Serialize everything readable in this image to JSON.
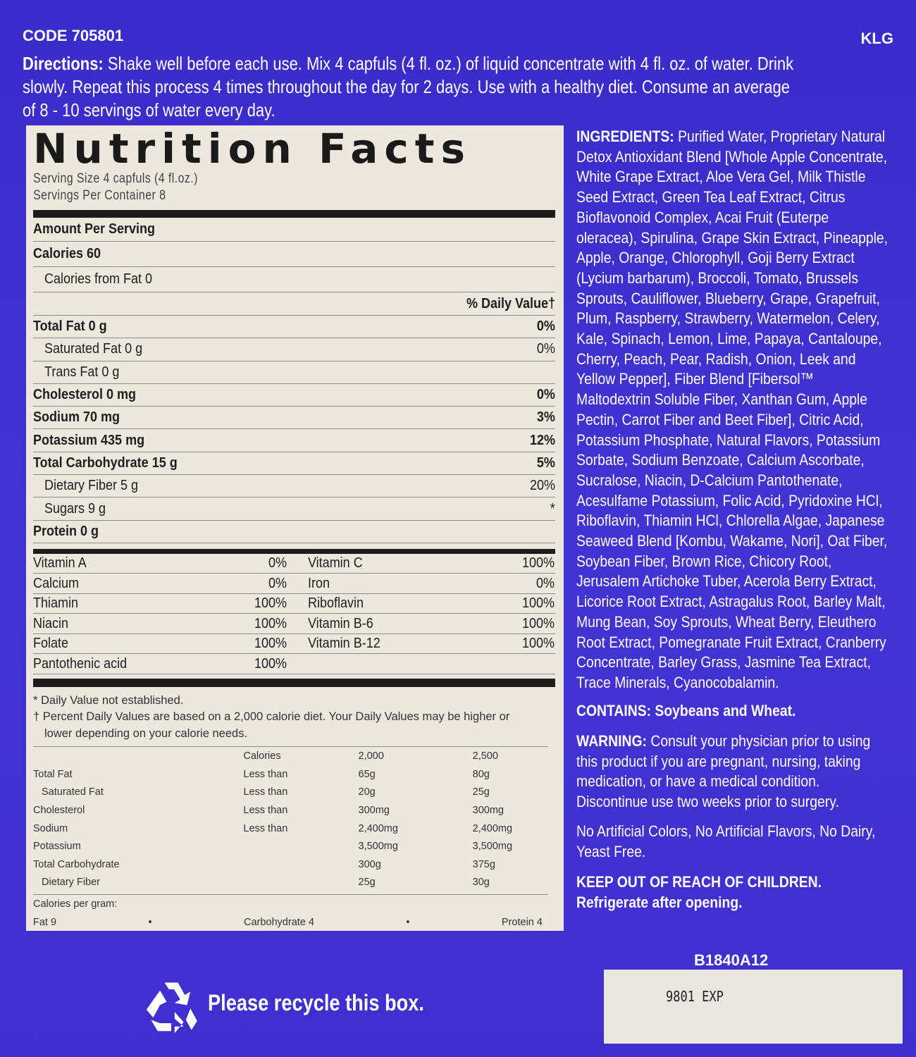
{
  "header": {
    "code": "CODE 705801",
    "klg": "KLG"
  },
  "directions": {
    "label": "Directions:",
    "lines": [
      "Shake well before each use. Mix 4 capfuls (4 fl. oz.) of liquid concentrate with 4 fl. oz. of water. Drink",
      "slowly. Repeat this process 4 times throughout the day for 2 days. Use with a healthy diet. Consume an average",
      "of 8 - 10 servings of water every day."
    ]
  },
  "nutrition": {
    "title": "Nutrition Facts",
    "serving_size": "Serving Size  4 capfuls (4 fl.oz.)",
    "servings_per_container": "Servings Per Container  8",
    "amount_per_serving": "Amount Per Serving",
    "calories": "Calories  60",
    "calories_from_fat": "Calories from Fat  0",
    "daily_value_header": "% Daily Value†",
    "nutrients": [
      {
        "label": "Total Fat  0 g",
        "dv": "0%",
        "bold": true,
        "indent": false
      },
      {
        "label": "Saturated Fat  0 g",
        "dv": "0%",
        "bold": false,
        "indent": true
      },
      {
        "label": "Trans Fat  0 g",
        "dv": "",
        "bold": false,
        "indent": true
      },
      {
        "label": "Cholesterol  0 mg",
        "dv": "0%",
        "bold": true,
        "indent": false
      },
      {
        "label": "Sodium  70 mg",
        "dv": "3%",
        "bold": true,
        "indent": false
      },
      {
        "label": "Potassium  435 mg",
        "dv": "12%",
        "bold": true,
        "indent": false
      },
      {
        "label": "Total Carbohydrate  15 g",
        "dv": "5%",
        "bold": true,
        "indent": false
      },
      {
        "label": "Dietary Fiber  5 g",
        "dv": "20%",
        "bold": false,
        "indent": true
      },
      {
        "label": "Sugars  9 g",
        "dv": "*",
        "bold": false,
        "indent": true
      },
      {
        "label": "Protein  0 g",
        "dv": "",
        "bold": true,
        "indent": false
      }
    ],
    "vitamins": [
      [
        "Vitamin A",
        "0%",
        "Vitamin C",
        "100%"
      ],
      [
        "Calcium",
        "0%",
        "Iron",
        "0%"
      ],
      [
        "Thiamin",
        "100%",
        "Riboflavin",
        "100%"
      ],
      [
        "Niacin",
        "100%",
        "Vitamin B-6",
        "100%"
      ],
      [
        "Folate",
        "100%",
        "Vitamin B-12",
        "100%"
      ],
      [
        "Pantothenic acid",
        "100%",
        "",
        ""
      ]
    ],
    "footnotes": [
      "* Daily Value not established.",
      "† Percent Daily Values are based on a 2,000 calorie diet. Your Daily Values may be higher or",
      "lower depending on your calorie needs."
    ],
    "dv_table": {
      "header": [
        "",
        "Calories",
        "2,000",
        "2,500"
      ],
      "rows": [
        [
          "Total Fat",
          "Less than",
          "65g",
          "80g"
        ],
        [
          "  Saturated Fat",
          "Less than",
          "20g",
          "25g"
        ],
        [
          "Cholesterol",
          "Less than",
          "300mg",
          "300mg"
        ],
        [
          "Sodium",
          "Less than",
          "2,400mg",
          "2,400mg"
        ],
        [
          "Potassium",
          "",
          "3,500mg",
          "3,500mg"
        ],
        [
          "Total Carbohydrate",
          "",
          "300g",
          "375g"
        ],
        [
          "  Dietary Fiber",
          "",
          "25g",
          "30g"
        ]
      ]
    },
    "calories_per_gram": "Calories per gram:",
    "cpg": [
      "Fat 9",
      "Carbohydrate 4",
      "Protein 4"
    ]
  },
  "ingredients": {
    "label": "INGREDIENTS:",
    "lines": [
      "Purified Water, Proprietary Natural",
      "Detox Antioxidant Blend [Whole Apple Concentrate,",
      "White Grape Extract, Aloe Vera Gel, Milk Thistle",
      "Seed Extract, Green Tea Leaf Extract, Citrus",
      "Bioflavonoid Complex, Acai Fruit (Euterpe",
      "oleracea), Spirulina, Grape Skin Extract, Pineapple,",
      "Apple, Orange, Chlorophyll, Goji Berry Extract",
      "(Lycium barbarum), Broccoli, Tomato, Brussels",
      "Sprouts, Cauliflower, Blueberry, Grape, Grapefruit,",
      "Plum, Raspberry, Strawberry, Watermelon, Celery,",
      "Kale, Spinach, Lemon, Lime, Papaya, Cantaloupe,",
      "Cherry, Peach, Pear, Radish, Onion, Leek and",
      "Yellow Pepper], Fiber Blend [Fibersol™",
      "Maltodextrin Soluble Fiber,  Xanthan Gum, Apple",
      "Pectin, Carrot Fiber and Beet Fiber], Citric Acid,",
      "Potassium Phosphate, Natural Flavors, Potassium",
      "Sorbate, Sodium Benzoate, Calcium Ascorbate,",
      "Sucralose, Niacin, D-Calcium Pantothenate,",
      "Acesulfame Potassium, Folic Acid, Pyridoxine HCl,",
      "Riboflavin, Thiamin HCl, Chlorella Algae, Japanese",
      "Seaweed Blend [Kombu, Wakame, Nori], Oat Fiber,",
      "Soybean Fiber, Brown Rice, Chicory Root,",
      "Jerusalem Artichoke Tuber, Acerola Berry Extract,",
      "Licorice Root Extract, Astragalus Root, Barley Malt,",
      "Mung Bean, Soy Sprouts, Wheat Berry, Eleuthero",
      "Root Extract, Pomegranate Fruit Extract, Cranberry",
      "Concentrate, Barley Grass, Jasmine Tea Extract,",
      "Trace Minerals, Cyanocobalamin."
    ]
  },
  "contains": "CONTAINS: Soybeans and Wheat.",
  "warning": {
    "label": "WARNING:",
    "lines": [
      "Consult your physician prior to using",
      "this product if you are pregnant, nursing, taking",
      "medication, or have a medical condition.",
      "Discontinue use two weeks prior to surgery."
    ]
  },
  "claims": [
    "No Artificial Colors, No Artificial Flavors, No Dairy,",
    "Yeast Free."
  ],
  "keep_out": [
    "KEEP OUT OF REACH OF CHILDREN.",
    "Refrigerate after opening."
  ],
  "lot_code": "B1840A12",
  "expiry": "9801 EXP",
  "recycle_text": "Please recycle this box.",
  "icons": {
    "recycle": "recycle-icon"
  },
  "colors": {
    "background": "#3f2fcf",
    "panel": "#ece8de",
    "text": "#ffffff"
  }
}
